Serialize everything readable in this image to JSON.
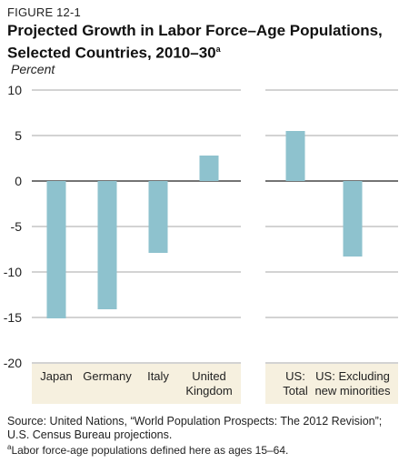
{
  "figure": {
    "label": "FIGURE 12-1",
    "title": "Projected Growth in Labor Force–Age Populations, Selected Countries, 2010–30",
    "title_marker": "a",
    "source": "Source: United Nations, “World Population Prospects: The 2012 Revision”; U.S. Census Bureau projections.",
    "note_marker": "a",
    "note": "Labor force-age populations defined here as ages 15–64."
  },
  "colors": {
    "bar": "#8ec2ce",
    "category_band": "#f6f0df",
    "grid": "#8a8a8a",
    "zero_line": "#222222"
  },
  "chart_data": {
    "type": "bar",
    "ylabel": "Percent",
    "ylim": [
      -20,
      10
    ],
    "yticks": [
      10,
      5,
      0,
      -5,
      -10,
      -15,
      -20
    ],
    "ytick_labels": [
      "10",
      "5",
      "0",
      "-5",
      "-10",
      "-15",
      "-20"
    ],
    "grid": true,
    "groups": [
      {
        "categories": [
          "Japan",
          "Germany",
          "Italy",
          "United Kingdom"
        ],
        "category_lines": [
          [
            "Japan"
          ],
          [
            "Germany"
          ],
          [
            "Italy"
          ],
          [
            "United",
            "Kingdom"
          ]
        ],
        "values": [
          -15.1,
          -14.1,
          -7.9,
          2.8
        ]
      },
      {
        "categories": [
          "US: Total",
          "US: Excluding new minorities"
        ],
        "category_lines": [
          [
            "US:",
            "Total"
          ],
          [
            "US: Excluding",
            "new minorities"
          ]
        ],
        "values": [
          5.5,
          -8.3
        ]
      }
    ]
  }
}
